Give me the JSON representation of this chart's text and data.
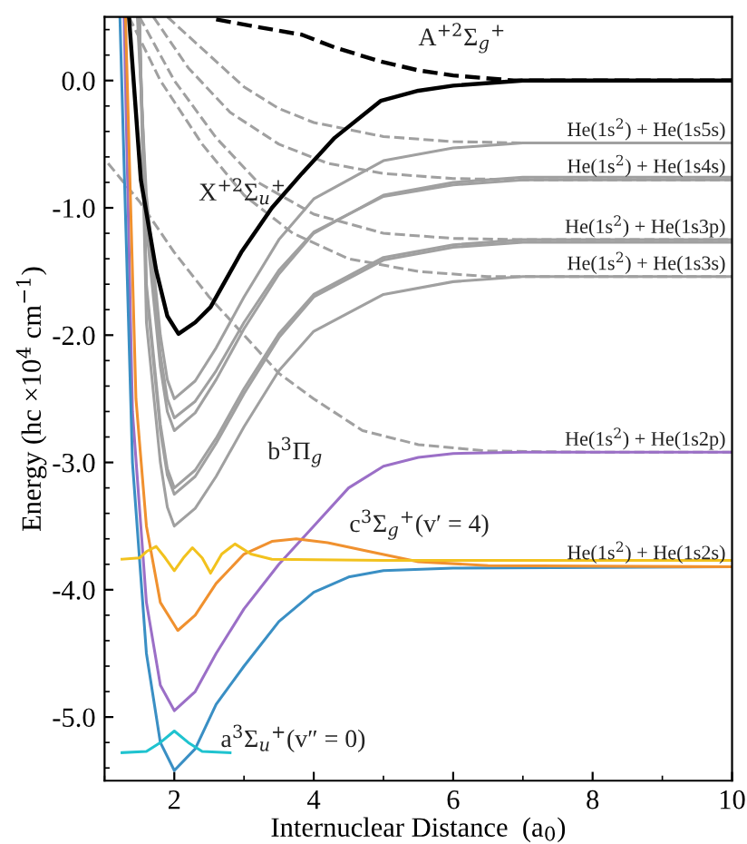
{
  "chart_data": {
    "type": "line",
    "xlabel": "Internuclear Distance  (a$_{0}$)",
    "ylabel": "Energy (hc ×10$^{4}$ cm$^{−1}$)",
    "xlim": [
      1,
      10
    ],
    "ylim": [
      -5.5,
      0.5
    ],
    "xticks": [
      2,
      4,
      6,
      8,
      10
    ],
    "yticks": [
      {
        "value": -5,
        "label": "-5.0"
      },
      {
        "value": -4,
        "label": "-4.0"
      },
      {
        "value": -3,
        "label": "-3.0"
      },
      {
        "value": -2,
        "label": "-2.0"
      },
      {
        "value": -1,
        "label": "-1.0"
      },
      {
        "value": 0,
        "label": "0.0"
      }
    ],
    "grid": false,
    "legend": false,
    "marker": "none",
    "series": [
      {
        "color": "#a0a0a0",
        "line_style": "dashed",
        "x": [
          1.05,
          1.5,
          2.0,
          2.5,
          3.0,
          3.5,
          4.0,
          4.7,
          5.5,
          6.5,
          8,
          10
        ],
        "values": [
          -0.65,
          -0.95,
          -1.35,
          -1.7,
          -2.0,
          -2.3,
          -2.5,
          -2.75,
          -2.86,
          -2.91,
          -2.92,
          -2.92
        ]
      },
      {
        "color": "#a0a0a0",
        "line_style": "dashed",
        "x": [
          1.9,
          2.5,
          3.0,
          3.5,
          4.0,
          5.0,
          6.0,
          7,
          10
        ],
        "values": [
          0.5,
          0.2,
          -0.05,
          -0.22,
          -0.33,
          -0.44,
          -0.48,
          -0.49,
          -0.49
        ]
      },
      {
        "color": "#a0a0a0",
        "line_style": "dashed",
        "x": [
          1.7,
          2.2,
          2.8,
          3.5,
          4.2,
          5.0,
          6.0,
          7,
          10
        ],
        "values": [
          0.5,
          0.1,
          -0.25,
          -0.5,
          -0.65,
          -0.73,
          -0.77,
          -0.78,
          -0.78
        ]
      },
      {
        "color": "#a0a0a0",
        "line_style": "dashed",
        "x": [
          1.5,
          2.0,
          2.6,
          3.2,
          4.0,
          5.0,
          6.0,
          7,
          10
        ],
        "values": [
          0.5,
          0.0,
          -0.45,
          -0.8,
          -1.05,
          -1.2,
          -1.24,
          -1.25,
          -1.25
        ]
      },
      {
        "color": "#a0a0a0",
        "line_style": "dashed",
        "x": [
          1.35,
          1.8,
          2.4,
          3.0,
          3.7,
          4.5,
          5.5,
          6.5,
          10
        ],
        "values": [
          0.5,
          0.0,
          -0.5,
          -0.9,
          -1.2,
          -1.4,
          -1.5,
          -1.54,
          -1.54
        ]
      },
      {
        "color": "#a0a0a0",
        "line_style": "solid",
        "x": [
          1.47,
          1.6,
          1.8,
          1.9,
          2.0,
          2.3,
          2.6,
          3.0,
          3.5,
          4.0,
          5.0,
          6.0,
          7.0,
          10
        ],
        "values": [
          0.5,
          -0.9,
          -2.0,
          -2.35,
          -2.5,
          -2.36,
          -2.1,
          -1.7,
          -1.25,
          -0.93,
          -0.63,
          -0.53,
          -0.49,
          -0.49
        ]
      },
      {
        "color": "#a0a0a0",
        "line_style": "solid",
        "x": [
          1.48,
          1.6,
          1.8,
          1.9,
          2.0,
          2.3,
          2.6,
          3.0,
          3.5,
          4.0,
          5.0,
          6.0,
          7.0,
          10
        ],
        "values": [
          0.5,
          -1.05,
          -2.15,
          -2.5,
          -2.65,
          -2.52,
          -2.28,
          -1.9,
          -1.49,
          -1.19,
          -0.91,
          -0.82,
          -0.78,
          -0.78
        ]
      },
      {
        "color": "#a0a0a0",
        "line_style": "solid",
        "x": [
          1.49,
          1.6,
          1.8,
          1.9,
          2.0,
          2.3,
          2.6,
          3.0,
          3.5,
          4.0,
          5.0,
          6.0,
          7.0,
          10
        ],
        "values": [
          0.5,
          -1.15,
          -2.25,
          -2.6,
          -2.75,
          -2.61,
          -2.35,
          -1.95,
          -1.52,
          -1.2,
          -0.9,
          -0.8,
          -0.76,
          -0.76
        ]
      },
      {
        "color": "#a0a0a0",
        "line_style": "solid",
        "x": [
          1.5,
          1.6,
          1.8,
          1.9,
          2.0,
          2.3,
          2.6,
          3.0,
          3.5,
          4.0,
          5.0,
          6.0,
          7.0,
          10
        ],
        "values": [
          0.5,
          -1.6,
          -2.7,
          -3.05,
          -3.2,
          -3.06,
          -2.81,
          -2.42,
          -1.99,
          -1.68,
          -1.39,
          -1.29,
          -1.25,
          -1.25
        ]
      },
      {
        "color": "#a0a0a0",
        "line_style": "solid",
        "x": [
          1.5,
          1.6,
          1.8,
          1.9,
          2.0,
          2.3,
          2.6,
          3.0,
          3.5,
          4.0,
          5.0,
          6.0,
          7.0,
          10
        ],
        "values": [
          0.5,
          -1.65,
          -2.75,
          -3.1,
          -3.25,
          -3.11,
          -2.85,
          -2.46,
          -2.02,
          -1.7,
          -1.41,
          -1.31,
          -1.27,
          -1.27
        ]
      },
      {
        "color": "#a0a0a0",
        "line_style": "solid",
        "x": [
          1.5,
          1.6,
          1.8,
          1.9,
          2.0,
          2.3,
          2.6,
          3.0,
          3.5,
          4.0,
          5.0,
          6.0,
          7.0,
          10
        ],
        "values": [
          0.5,
          -1.9,
          -3.0,
          -3.35,
          -3.5,
          -3.36,
          -3.11,
          -2.72,
          -2.28,
          -1.97,
          -1.68,
          -1.58,
          -1.54,
          -1.54
        ]
      },
      {
        "color": "#000000",
        "line_style": "dashed",
        "x": [
          2.6,
          3.2,
          3.83,
          4.3,
          4.96,
          5.5,
          6.0,
          6.87,
          8,
          10
        ],
        "values": [
          0.48,
          0.42,
          0.36,
          0.26,
          0.15,
          0.08,
          0.04,
          0.0,
          0.0,
          0.0
        ]
      },
      {
        "color": "#000000",
        "line_style": "solid",
        "x": [
          1.35,
          1.52,
          1.74,
          1.9,
          2.06,
          2.3,
          2.52,
          2.96,
          3.4,
          3.83,
          4.3,
          4.96,
          5.5,
          6.0,
          7.0,
          10
        ],
        "values": [
          0.5,
          -0.78,
          -1.49,
          -1.85,
          -1.99,
          -1.9,
          -1.78,
          -1.35,
          -1.0,
          -0.73,
          -0.45,
          -0.16,
          -0.08,
          -0.04,
          0.0,
          0.0
        ]
      },
      {
        "color": "#9b6fc7",
        "line_style": "solid",
        "x": [
          1.28,
          1.4,
          1.6,
          1.8,
          2.0,
          2.3,
          2.6,
          3.0,
          3.5,
          4.0,
          4.5,
          5.0,
          5.5,
          6.0,
          7,
          10
        ],
        "values": [
          0.5,
          -2.6,
          -4.1,
          -4.75,
          -4.95,
          -4.8,
          -4.5,
          -4.15,
          -3.8,
          -3.5,
          -3.2,
          -3.03,
          -2.96,
          -2.93,
          -2.92,
          -2.92
        ]
      },
      {
        "color": "#3a8fc4",
        "line_style": "solid",
        "x": [
          1.22,
          1.4,
          1.6,
          1.8,
          2.0,
          2.3,
          2.6,
          3.0,
          3.5,
          4.0,
          4.5,
          5,
          6,
          10
        ],
        "values": [
          0.5,
          -3.0,
          -4.5,
          -5.2,
          -5.42,
          -5.25,
          -4.9,
          -4.6,
          -4.25,
          -4.02,
          -3.9,
          -3.85,
          -3.83,
          -3.82
        ]
      },
      {
        "color": "#f0912f",
        "line_style": "solid",
        "x": [
          1.3,
          1.45,
          1.6,
          1.8,
          2.05,
          2.3,
          2.6,
          3.0,
          3.4,
          3.75,
          4.2,
          4.8,
          5.5,
          6.5,
          10
        ],
        "values": [
          0.5,
          -2.5,
          -3.5,
          -4.1,
          -4.32,
          -4.2,
          -3.95,
          -3.72,
          -3.62,
          -3.6,
          -3.63,
          -3.7,
          -3.78,
          -3.81,
          -3.82
        ]
      },
      {
        "color": "#f2c21e",
        "line_style": "solid",
        "x": [
          1.25,
          1.5,
          1.6,
          1.74,
          1.87,
          2.0,
          2.13,
          2.26,
          2.4,
          2.52,
          2.68,
          2.87,
          3.1,
          3.4,
          5,
          10
        ],
        "values": [
          -3.76,
          -3.75,
          -3.7,
          -3.66,
          -3.75,
          -3.85,
          -3.75,
          -3.67,
          -3.75,
          -3.87,
          -3.72,
          -3.64,
          -3.72,
          -3.76,
          -3.77,
          -3.77
        ]
      },
      {
        "color": "#1fc3cf",
        "line_style": "solid",
        "x": [
          1.25,
          1.6,
          1.8,
          2.0,
          2.2,
          2.4,
          2.8
        ],
        "values": [
          -5.28,
          -5.27,
          -5.2,
          -5.11,
          -5.2,
          -5.27,
          -5.28
        ]
      }
    ],
    "annotations": [
      "A$^{+2}$Σ$_{g}$$^{+}$",
      "X$^{+2}$Σ$_{u}$$^{+}$",
      "He(1s$^{2}$) + He(1s5s)",
      "He(1s$^{2}$) + He(1s4s)",
      "He(1s$^{2}$) + He(1s3p)",
      "He(1s$^{2}$) + He(1s3s)",
      "He(1s$^{2}$) + He(1s2p)",
      "He(1s$^{2}$) + He(1s2s)",
      "b$^{3}$Π$_{g}$",
      "c$^{3}$Σ$_{g}$$^{+}$(v′ = 4)",
      "a$^{3}$Σ$_{u}$$^{+}$(v″ = 0)"
    ]
  }
}
